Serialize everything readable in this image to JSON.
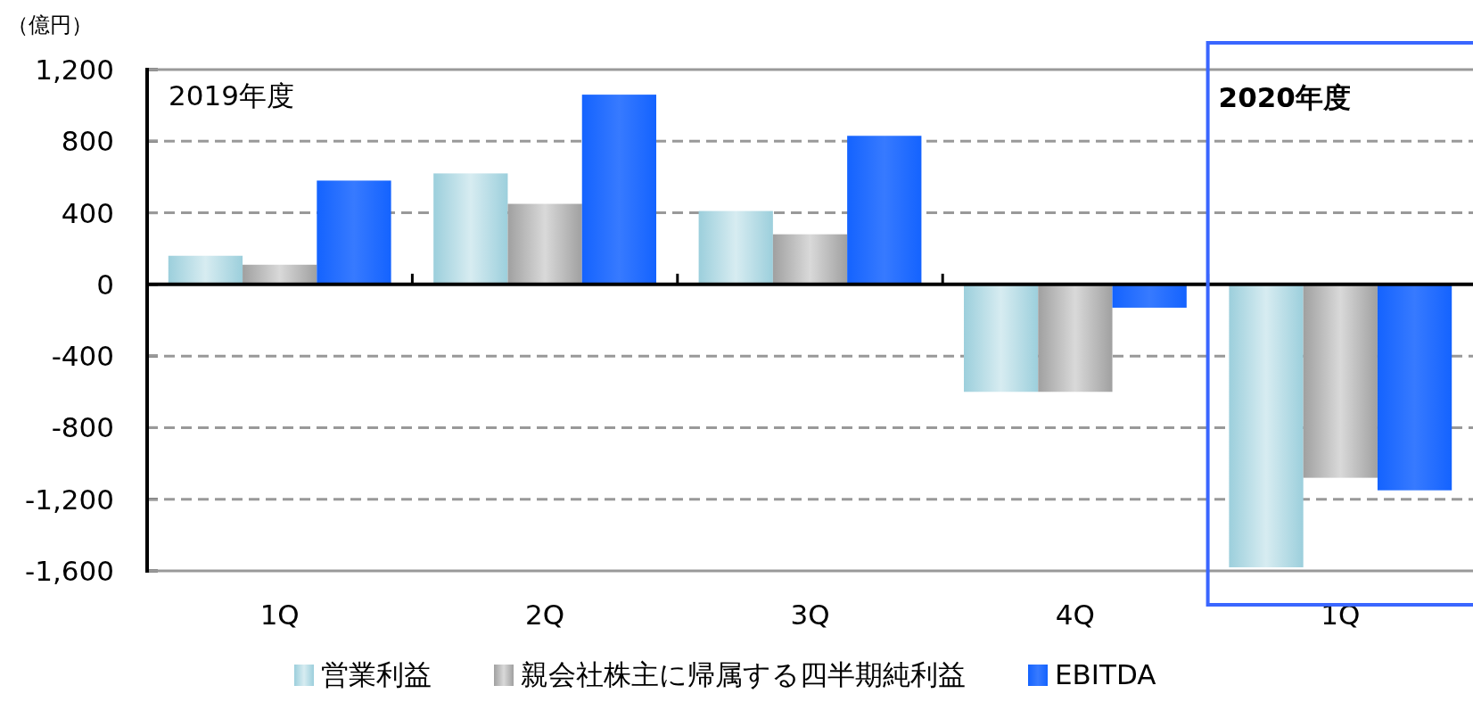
{
  "chart_data": {
    "type": "bar",
    "ylabel": "（億円）",
    "categories": [
      "1Q",
      "2Q",
      "3Q",
      "4Q",
      "1Q"
    ],
    "series": [
      {
        "name": "営業利益",
        "color": "#9ccfdc",
        "values": [
          160,
          620,
          410,
          -600,
          -1580
        ]
      },
      {
        "name": "親会社株主に帰属する四半期純利益",
        "color": "#a0a0a0",
        "values": [
          110,
          450,
          280,
          -600,
          -1080
        ]
      },
      {
        "name": "EBITDA",
        "color": "#1463ff",
        "values": [
          580,
          1060,
          830,
          -130,
          -1150
        ]
      }
    ],
    "ylim": [
      -1600,
      1200
    ],
    "yticks": [
      {
        "value": -1600,
        "label": "-1,600"
      },
      {
        "value": -1200,
        "label": "-1,200"
      },
      -800,
      -400,
      0,
      400,
      800,
      {
        "value": 1200,
        "label": "1,200"
      }
    ],
    "grid": "y",
    "legend": "bottom",
    "annotations": [
      "2019年度",
      "2020年度"
    ]
  }
}
